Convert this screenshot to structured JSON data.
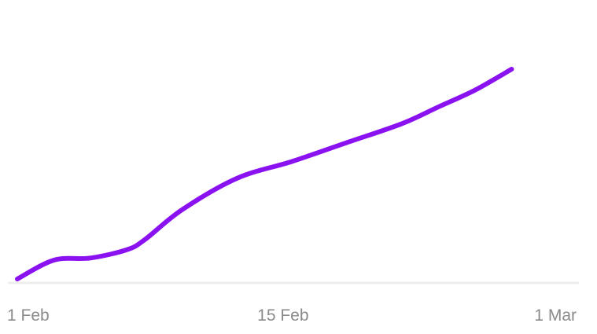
{
  "chart_data": {
    "type": "line",
    "title": "",
    "xlabel": "",
    "ylabel": "",
    "x_ticks": [
      {
        "label": "1 Feb",
        "date": "2024-02-01"
      },
      {
        "label": "15 Feb",
        "date": "2024-02-15"
      },
      {
        "label": "1 Mar",
        "date": "2024-03-01"
      }
    ],
    "xlim": [
      "2024-02-01",
      "2024-03-01"
    ],
    "ylim": [
      0,
      100
    ],
    "grid": false,
    "legend": "none",
    "series": [
      {
        "color": "#8B12F0",
        "points": [
          {
            "x": "2024-02-01",
            "y": 0
          },
          {
            "x": "2024-02-03",
            "y": 9
          },
          {
            "x": "2024-02-05",
            "y": 10
          },
          {
            "x": "2024-02-07",
            "y": 14
          },
          {
            "x": "2024-02-08",
            "y": 19
          },
          {
            "x": "2024-02-10",
            "y": 33
          },
          {
            "x": "2024-02-13",
            "y": 48
          },
          {
            "x": "2024-02-16",
            "y": 56
          },
          {
            "x": "2024-02-19",
            "y": 65
          },
          {
            "x": "2024-02-22",
            "y": 74
          },
          {
            "x": "2024-02-24",
            "y": 82
          },
          {
            "x": "2024-02-26",
            "y": 90
          },
          {
            "x": "2024-02-28",
            "y": 100
          }
        ]
      }
    ]
  }
}
